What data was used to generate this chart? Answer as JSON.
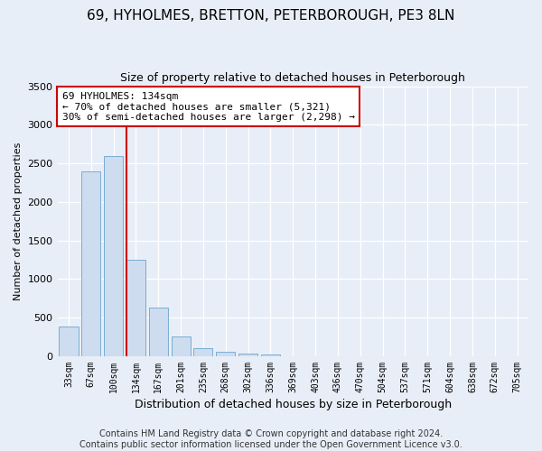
{
  "title": "69, HYHOLMES, BRETTON, PETERBOROUGH, PE3 8LN",
  "subtitle": "Size of property relative to detached houses in Peterborough",
  "xlabel": "Distribution of detached houses by size in Peterborough",
  "ylabel": "Number of detached properties",
  "categories": [
    "33sqm",
    "67sqm",
    "100sqm",
    "134sqm",
    "167sqm",
    "201sqm",
    "235sqm",
    "268sqm",
    "302sqm",
    "336sqm",
    "369sqm",
    "403sqm",
    "436sqm",
    "470sqm",
    "504sqm",
    "537sqm",
    "571sqm",
    "604sqm",
    "638sqm",
    "672sqm",
    "705sqm"
  ],
  "values": [
    390,
    2400,
    2600,
    1250,
    630,
    260,
    105,
    55,
    35,
    20,
    0,
    0,
    0,
    0,
    0,
    0,
    0,
    0,
    0,
    0,
    0
  ],
  "bar_color": "#cddcee",
  "bar_edge_color": "#7aadd4",
  "highlight_index": 3,
  "highlight_line_color": "#cc0000",
  "annotation_text": "69 HYHOLMES: 134sqm\n← 70% of detached houses are smaller (5,321)\n30% of semi-detached houses are larger (2,298) →",
  "annotation_box_color": "#ffffff",
  "annotation_box_edge": "#cc0000",
  "ylim": [
    0,
    3500
  ],
  "yticks": [
    0,
    500,
    1000,
    1500,
    2000,
    2500,
    3000,
    3500
  ],
  "footer_line1": "Contains HM Land Registry data © Crown copyright and database right 2024.",
  "footer_line2": "Contains public sector information licensed under the Open Government Licence v3.0.",
  "bg_color": "#e8eef7",
  "plot_bg_color": "#e8eef7",
  "title_fontsize": 11,
  "subtitle_fontsize": 9,
  "ylabel_fontsize": 8,
  "xlabel_fontsize": 9,
  "tick_fontsize": 7,
  "footer_fontsize": 7,
  "annotation_fontsize": 8
}
